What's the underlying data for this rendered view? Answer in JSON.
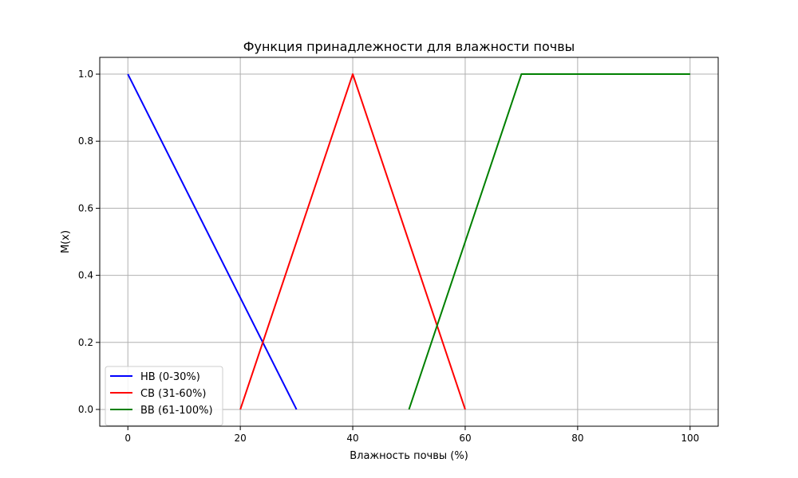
{
  "chart_data": {
    "type": "line",
    "title": "Функция принадлежности для влажности почвы",
    "xlabel": "Влажность почвы (%)",
    "ylabel": "M(x)",
    "xlim": [
      -5,
      105
    ],
    "ylim": [
      -0.05,
      1.05
    ],
    "xticks": [
      0,
      20,
      40,
      60,
      80,
      100
    ],
    "xtick_labels": [
      "0",
      "20",
      "40",
      "60",
      "80",
      "100"
    ],
    "yticks": [
      0.0,
      0.2,
      0.4,
      0.6,
      0.8,
      1.0
    ],
    "ytick_labels": [
      "0.0",
      "0.2",
      "0.4",
      "0.6",
      "0.8",
      "1.0"
    ],
    "grid": true,
    "legend_position": "lower-left",
    "series": [
      {
        "name": "НВ (0-30%)",
        "color": "#0000ff",
        "x": [
          0,
          30
        ],
        "y": [
          1.0,
          0.0
        ]
      },
      {
        "name": "СВ (31-60%)",
        "color": "#ff0000",
        "x": [
          20,
          40,
          60
        ],
        "y": [
          0.0,
          1.0,
          0.0
        ]
      },
      {
        "name": "ВВ (61-100%)",
        "color": "#008000",
        "x": [
          50,
          70,
          100
        ],
        "y": [
          0.0,
          1.0,
          1.0
        ]
      }
    ]
  }
}
